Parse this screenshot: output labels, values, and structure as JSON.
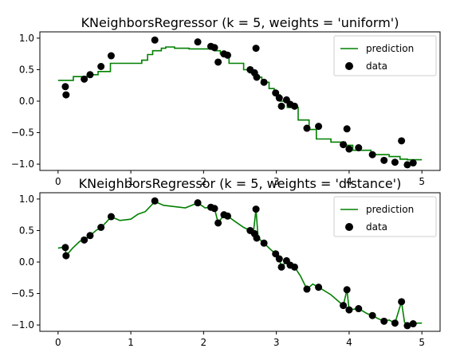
{
  "chart_data": [
    {
      "type": "line",
      "title": "KNeighborsRegressor (k = 5, weights = 'uniform')",
      "xlabel": "",
      "ylabel": "",
      "xlim": [
        -0.25,
        5.25
      ],
      "ylim": [
        -1.1,
        1.1
      ],
      "xticks": [
        "0",
        "1",
        "2",
        "3",
        "4",
        "5"
      ],
      "yticks": [
        "1.0",
        "0.5",
        "0.0",
        "−0.5",
        "−1.0"
      ],
      "legend": {
        "placement": "top-right",
        "entries": [
          "prediction",
          "data"
        ]
      },
      "series": [
        {
          "name": "prediction",
          "kind": "step-line",
          "color": "#008000",
          "x": [
            0.0,
            0.21,
            0.21,
            0.4,
            0.4,
            0.55,
            0.55,
            0.72,
            0.72,
            1.15,
            1.15,
            1.23,
            1.23,
            1.3,
            1.3,
            1.42,
            1.42,
            1.48,
            1.48,
            1.6,
            1.6,
            1.8,
            1.8,
            2.15,
            2.15,
            2.23,
            2.23,
            2.35,
            2.35,
            2.55,
            2.55,
            2.63,
            2.63,
            2.7,
            2.7,
            2.8,
            2.8,
            2.9,
            2.9,
            2.97,
            2.97,
            3.05,
            3.05,
            3.15,
            3.15,
            3.3,
            3.3,
            3.45,
            3.45,
            3.55,
            3.55,
            3.75,
            3.75,
            3.95,
            3.95,
            4.05,
            4.05,
            4.3,
            4.3,
            4.55,
            4.55,
            4.7,
            4.7,
            4.8,
            4.8,
            5.0
          ],
          "y": [
            0.33,
            0.33,
            0.39,
            0.39,
            0.42,
            0.42,
            0.47,
            0.47,
            0.6,
            0.6,
            0.65,
            0.65,
            0.74,
            0.74,
            0.8,
            0.8,
            0.84,
            0.84,
            0.86,
            0.86,
            0.84,
            0.84,
            0.83,
            0.83,
            0.8,
            0.8,
            0.75,
            0.75,
            0.6,
            0.6,
            0.5,
            0.5,
            0.45,
            0.45,
            0.38,
            0.38,
            0.3,
            0.3,
            0.2,
            0.2,
            0.1,
            0.1,
            0.0,
            0.0,
            -0.1,
            -0.1,
            -0.3,
            -0.3,
            -0.45,
            -0.45,
            -0.6,
            -0.6,
            -0.65,
            -0.65,
            -0.7,
            -0.7,
            -0.78,
            -0.78,
            -0.85,
            -0.85,
            -0.88,
            -0.88,
            -0.92,
            -0.92,
            -0.93,
            -0.93
          ]
        },
        {
          "name": "data",
          "kind": "scatter",
          "color": "#000000",
          "x": [
            0.1,
            0.11,
            0.36,
            0.44,
            0.59,
            0.73,
            1.33,
            1.92,
            2.1,
            2.15,
            2.2,
            2.28,
            2.33,
            2.64,
            2.7,
            2.72,
            2.73,
            2.83,
            2.99,
            3.04,
            3.07,
            3.14,
            3.19,
            3.25,
            3.42,
            3.58,
            3.92,
            3.97,
            4.0,
            4.13,
            4.32,
            4.48,
            4.63,
            4.72,
            4.8,
            4.88
          ],
          "y": [
            0.23,
            0.1,
            0.35,
            0.42,
            0.55,
            0.72,
            0.97,
            0.94,
            0.87,
            0.85,
            0.62,
            0.75,
            0.73,
            0.5,
            0.45,
            0.84,
            0.38,
            0.3,
            0.13,
            0.05,
            -0.08,
            0.02,
            -0.05,
            -0.08,
            -0.43,
            -0.4,
            -0.69,
            -0.44,
            -0.76,
            -0.74,
            -0.85,
            -0.94,
            -0.97,
            -0.63,
            -1.01,
            -0.98
          ]
        }
      ]
    },
    {
      "type": "line",
      "title": "KNeighborsRegressor (k = 5, weights = 'distance')",
      "xlabel": "",
      "ylabel": "",
      "xlim": [
        -0.25,
        5.25
      ],
      "ylim": [
        -1.1,
        1.1
      ],
      "xticks": [
        "0",
        "1",
        "2",
        "3",
        "4",
        "5"
      ],
      "yticks": [
        "1.0",
        "0.5",
        "0.0",
        "−0.5",
        "−1.0"
      ],
      "legend": {
        "placement": "top-right",
        "entries": [
          "prediction",
          "data"
        ]
      },
      "series": [
        {
          "name": "prediction",
          "kind": "line",
          "color": "#008000",
          "x": [
            0.0,
            0.1,
            0.11,
            0.2,
            0.3,
            0.36,
            0.44,
            0.52,
            0.59,
            0.66,
            0.73,
            0.85,
            1.0,
            1.1,
            1.2,
            1.33,
            1.45,
            1.6,
            1.75,
            1.92,
            2.02,
            2.1,
            2.15,
            2.2,
            2.28,
            2.33,
            2.45,
            2.55,
            2.64,
            2.69,
            2.72,
            2.75,
            2.83,
            2.92,
            2.99,
            3.04,
            3.07,
            3.14,
            3.19,
            3.25,
            3.33,
            3.42,
            3.5,
            3.58,
            3.75,
            3.92,
            3.97,
            4.0,
            4.13,
            4.25,
            4.32,
            4.4,
            4.48,
            4.55,
            4.63,
            4.72,
            4.76,
            4.8,
            4.88,
            4.95,
            5.0
          ],
          "y": [
            0.22,
            0.24,
            0.1,
            0.22,
            0.33,
            0.35,
            0.42,
            0.5,
            0.55,
            0.63,
            0.72,
            0.66,
            0.68,
            0.76,
            0.8,
            0.96,
            0.9,
            0.88,
            0.86,
            0.94,
            0.86,
            0.87,
            0.85,
            0.62,
            0.75,
            0.73,
            0.63,
            0.55,
            0.5,
            0.52,
            0.84,
            0.38,
            0.3,
            0.2,
            0.13,
            0.05,
            -0.08,
            0.02,
            -0.05,
            -0.08,
            -0.22,
            -0.43,
            -0.35,
            -0.4,
            -0.52,
            -0.69,
            -0.44,
            -0.76,
            -0.74,
            -0.82,
            -0.85,
            -0.9,
            -0.94,
            -0.92,
            -0.97,
            -0.63,
            -0.95,
            -1.01,
            -0.98,
            -0.97,
            -0.97
          ]
        },
        {
          "name": "data",
          "kind": "scatter",
          "color": "#000000",
          "x": [
            0.1,
            0.11,
            0.36,
            0.44,
            0.59,
            0.73,
            1.33,
            1.92,
            2.1,
            2.15,
            2.2,
            2.28,
            2.33,
            2.64,
            2.7,
            2.72,
            2.73,
            2.83,
            2.99,
            3.04,
            3.07,
            3.14,
            3.19,
            3.25,
            3.42,
            3.58,
            3.92,
            3.97,
            4.0,
            4.13,
            4.32,
            4.48,
            4.63,
            4.72,
            4.8,
            4.88
          ],
          "y": [
            0.23,
            0.1,
            0.35,
            0.42,
            0.55,
            0.72,
            0.97,
            0.94,
            0.87,
            0.85,
            0.62,
            0.75,
            0.73,
            0.5,
            0.45,
            0.84,
            0.38,
            0.3,
            0.13,
            0.05,
            -0.08,
            0.02,
            -0.05,
            -0.08,
            -0.43,
            -0.4,
            -0.69,
            -0.44,
            -0.76,
            -0.74,
            -0.85,
            -0.94,
            -0.97,
            -0.63,
            -1.01,
            -0.98
          ]
        }
      ]
    }
  ]
}
